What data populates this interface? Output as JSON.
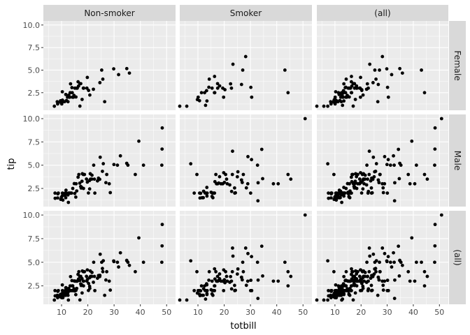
{
  "chart_data": {
    "type": "scatter",
    "facet_columns": [
      "Non-smoker",
      "Smoker",
      "(all)"
    ],
    "facet_rows": [
      "Female",
      "Male",
      "(all)"
    ],
    "xlabel": "totbill",
    "ylabel": "tip",
    "x_ticks": [
      10,
      20,
      30,
      40,
      50
    ],
    "y_ticks": [
      2.5,
      5.0,
      7.5,
      10.0
    ],
    "y_tick_labels": [
      "2.5",
      "5.0",
      "7.5",
      "10.0"
    ],
    "xlim": [
      3.07,
      53.4
    ],
    "ylim": [
      0.55,
      10.45
    ],
    "grid": true,
    "colors": {
      "panel": "#ebebeb",
      "strip": "#d9d9d9",
      "grid": "#ffffff",
      "point": "#000000"
    },
    "points": {
      "female_nonsmoker": [
        [
          7.25,
          1.0
        ],
        [
          8.35,
          1.5
        ],
        [
          8.51,
          1.25
        ],
        [
          9.6,
          1.6
        ],
        [
          10.07,
          1.25
        ],
        [
          10.29,
          2.6
        ],
        [
          10.33,
          1.67
        ],
        [
          10.65,
          1.5
        ],
        [
          11.17,
          1.5
        ],
        [
          11.87,
          1.63
        ],
        [
          12.26,
          2.0
        ],
        [
          12.46,
          1.5
        ],
        [
          12.76,
          2.23
        ],
        [
          13.0,
          2.0
        ],
        [
          13.13,
          2.0
        ],
        [
          13.27,
          2.5
        ],
        [
          13.42,
          3.48
        ],
        [
          13.94,
          3.06
        ],
        [
          14.07,
          2.5
        ],
        [
          14.15,
          2.0
        ],
        [
          14.52,
          2.0
        ],
        [
          14.73,
          2.2
        ],
        [
          15.06,
          3.0
        ],
        [
          15.48,
          2.02
        ],
        [
          15.69,
          3.0
        ],
        [
          15.98,
          3.0
        ],
        [
          16.29,
          3.71
        ],
        [
          16.47,
          3.23
        ],
        [
          16.97,
          3.5
        ],
        [
          16.99,
          1.01
        ],
        [
          17.31,
          3.5
        ],
        [
          17.82,
          1.75
        ],
        [
          18.29,
          3.0
        ],
        [
          18.43,
          3.0
        ],
        [
          19.65,
          3.0
        ],
        [
          19.81,
          4.19
        ],
        [
          20.29,
          2.75
        ],
        [
          20.76,
          2.24
        ],
        [
          22.12,
          2.88
        ],
        [
          24.59,
          3.61
        ],
        [
          25.28,
          5.0
        ],
        [
          25.71,
          4.0
        ],
        [
          26.41,
          1.5
        ],
        [
          29.85,
          5.14
        ],
        [
          31.71,
          4.5
        ],
        [
          34.83,
          5.17
        ],
        [
          35.83,
          4.67
        ],
        [
          10.34,
          1.66
        ],
        [
          11.61,
          2.3
        ],
        [
          9.55,
          1.45
        ]
      ],
      "female_smoker": [
        [
          3.07,
          1.0
        ],
        [
          5.75,
          1.0
        ],
        [
          9.78,
          1.73
        ],
        [
          10.09,
          2.0
        ],
        [
          11.35,
          2.5
        ],
        [
          12.9,
          1.1
        ],
        [
          13.42,
          1.58
        ],
        [
          14.31,
          4.0
        ],
        [
          15.38,
          3.0
        ],
        [
          16.27,
          2.5
        ],
        [
          16.4,
          2.5
        ],
        [
          17.51,
          3.0
        ],
        [
          18.26,
          3.25
        ],
        [
          19.44,
          3.0
        ],
        [
          19.77,
          2.0
        ],
        [
          20.27,
          2.83
        ],
        [
          22.42,
          3.48
        ],
        [
          22.76,
          3.0
        ],
        [
          23.33,
          5.65
        ],
        [
          26.59,
          3.41
        ],
        [
          27.05,
          5.0
        ],
        [
          28.17,
          6.5
        ],
        [
          30.14,
          3.09
        ],
        [
          30.46,
          2.0
        ],
        [
          44.3,
          2.5
        ],
        [
          43.11,
          5.0
        ],
        [
          17.47,
          3.5
        ],
        [
          14.15,
          3.1
        ],
        [
          12.54,
          2.5
        ],
        [
          10.59,
          1.61
        ],
        [
          16.32,
          4.3
        ],
        [
          13.28,
          2.72
        ]
      ],
      "male_nonsmoker": [
        [
          7.51,
          2.0
        ],
        [
          7.56,
          1.44
        ],
        [
          8.52,
          1.48
        ],
        [
          8.58,
          1.92
        ],
        [
          8.77,
          2.0
        ],
        [
          9.68,
          1.32
        ],
        [
          9.94,
          1.56
        ],
        [
          10.27,
          1.71
        ],
        [
          10.34,
          2.0
        ],
        [
          10.51,
          1.25
        ],
        [
          11.24,
          1.76
        ],
        [
          11.38,
          2.0
        ],
        [
          11.69,
          2.31
        ],
        [
          12.02,
          1.97
        ],
        [
          12.43,
          1.8
        ],
        [
          12.69,
          2.0
        ],
        [
          13.37,
          2.0
        ],
        [
          13.81,
          2.0
        ],
        [
          14.26,
          2.5
        ],
        [
          14.83,
          3.02
        ],
        [
          15.04,
          1.96
        ],
        [
          15.42,
          1.57
        ],
        [
          15.77,
          2.23
        ],
        [
          16.29,
          3.71
        ],
        [
          16.58,
          4.0
        ],
        [
          17.29,
          2.71
        ],
        [
          17.78,
          3.27
        ],
        [
          17.92,
          4.08
        ],
        [
          18.35,
          2.5
        ],
        [
          18.71,
          4.0
        ],
        [
          19.49,
          3.51
        ],
        [
          20.23,
          2.01
        ],
        [
          20.65,
          3.35
        ],
        [
          20.69,
          2.45
        ],
        [
          21.01,
          3.5
        ],
        [
          21.5,
          3.5
        ],
        [
          22.23,
          5.0
        ],
        [
          22.49,
          3.5
        ],
        [
          23.68,
          3.31
        ],
        [
          24.06,
          3.6
        ],
        [
          24.71,
          5.85
        ],
        [
          25.56,
          4.34
        ],
        [
          26.88,
          3.12
        ],
        [
          27.2,
          4.0
        ],
        [
          28.15,
          3.0
        ],
        [
          28.55,
          2.05
        ],
        [
          29.93,
          5.07
        ],
        [
          31.27,
          5.0
        ],
        [
          32.4,
          6.0
        ],
        [
          34.81,
          5.2
        ],
        [
          35.26,
          5.0
        ],
        [
          38.07,
          4.0
        ],
        [
          39.42,
          7.58
        ],
        [
          41.19,
          5.0
        ],
        [
          48.27,
          6.73
        ],
        [
          48.17,
          5.0
        ],
        [
          48.33,
          9.0
        ],
        [
          21.58,
          3.92
        ],
        [
          19.82,
          3.18
        ],
        [
          16.93,
          3.07
        ],
        [
          20.92,
          4.08
        ],
        [
          13.03,
          2.0
        ],
        [
          15.53,
          3.0
        ],
        [
          24.52,
          3.48
        ],
        [
          22.67,
          2.0
        ],
        [
          17.46,
          2.54
        ],
        [
          18.28,
          4.0
        ],
        [
          11.59,
          1.5
        ],
        [
          25.89,
          5.16
        ],
        [
          12.6,
          1.0
        ],
        [
          17.59,
          2.64
        ]
      ],
      "male_smoker": [
        [
          7.25,
          5.15
        ],
        [
          9.6,
          4.0
        ],
        [
          10.77,
          1.47
        ],
        [
          11.02,
          1.98
        ],
        [
          12.03,
          1.5
        ],
        [
          13.51,
          2.0
        ],
        [
          13.39,
          2.61
        ],
        [
          15.01,
          2.09
        ],
        [
          15.36,
          1.64
        ],
        [
          16.0,
          2.0
        ],
        [
          16.31,
          2.0
        ],
        [
          17.92,
          3.08
        ],
        [
          18.24,
          3.76
        ],
        [
          19.44,
          3.0
        ],
        [
          20.08,
          3.15
        ],
        [
          20.9,
          3.5
        ],
        [
          22.82,
          2.18
        ],
        [
          23.1,
          4.0
        ],
        [
          23.17,
          6.5
        ],
        [
          24.01,
          2.0
        ],
        [
          25.0,
          3.75
        ],
        [
          28.44,
          2.56
        ],
        [
          28.97,
          3.0
        ],
        [
          30.06,
          2.0
        ],
        [
          32.68,
          5.0
        ],
        [
          32.83,
          1.17
        ],
        [
          34.63,
          3.55
        ],
        [
          40.55,
          3.0
        ],
        [
          45.35,
          3.5
        ],
        [
          50.81,
          10.0
        ],
        [
          15.48,
          2.0
        ],
        [
          13.42,
          1.68
        ],
        [
          11.59,
          1.5
        ],
        [
          12.16,
          2.2
        ],
        [
          16.47,
          3.23
        ],
        [
          22.12,
          2.88
        ],
        [
          19.81,
          4.19
        ],
        [
          26.86,
          3.14
        ],
        [
          17.51,
          3.0
        ],
        [
          24.27,
          2.03
        ],
        [
          21.16,
          3.0
        ],
        [
          34.3,
          6.7
        ],
        [
          12.74,
          2.01
        ],
        [
          13.0,
          2.0
        ],
        [
          16.82,
          4.0
        ],
        [
          18.78,
          3.0
        ],
        [
          25.21,
          4.29
        ],
        [
          38.73,
          3.0
        ],
        [
          44.3,
          4.0
        ],
        [
          32.9,
          3.11
        ],
        [
          23.95,
          2.55
        ],
        [
          27.28,
          4.0
        ],
        [
          30.4,
          5.6
        ],
        [
          17.07,
          3.0
        ],
        [
          29.03,
          5.92
        ],
        [
          20.53,
          4.0
        ],
        [
          10.63,
          2.0
        ],
        [
          26.59,
          3.41
        ],
        [
          15.69,
          1.5
        ],
        [
          8.58,
          2.0
        ]
      ]
    }
  }
}
